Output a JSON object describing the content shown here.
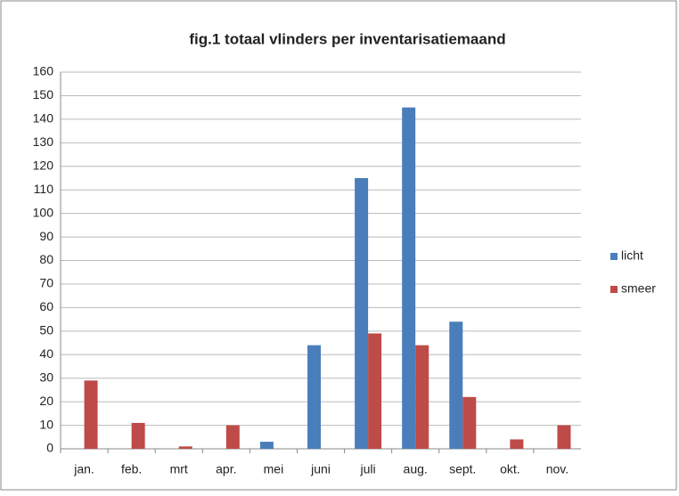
{
  "chart_data": {
    "type": "bar",
    "title": "fig.1  totaal vlinders per inventarisatiemaand",
    "categories": [
      "jan.",
      "feb.",
      "mrt",
      "apr.",
      "mei",
      "juni",
      "juli",
      "aug.",
      "sept.",
      "okt.",
      "nov."
    ],
    "series": [
      {
        "name": "licht",
        "color": "#4a7ebb",
        "values": [
          0,
          0,
          0,
          0,
          3,
          44,
          115,
          145,
          54,
          0,
          0
        ]
      },
      {
        "name": "smeer",
        "color": "#be4b48",
        "values": [
          29,
          11,
          1,
          10,
          0,
          0,
          49,
          44,
          22,
          4,
          10
        ]
      }
    ],
    "ylim": [
      0,
      160
    ],
    "yticks": [
      0,
      10,
      20,
      30,
      40,
      50,
      60,
      70,
      80,
      90,
      100,
      110,
      120,
      130,
      140,
      150,
      160
    ],
    "grid": true,
    "legend": "right"
  }
}
